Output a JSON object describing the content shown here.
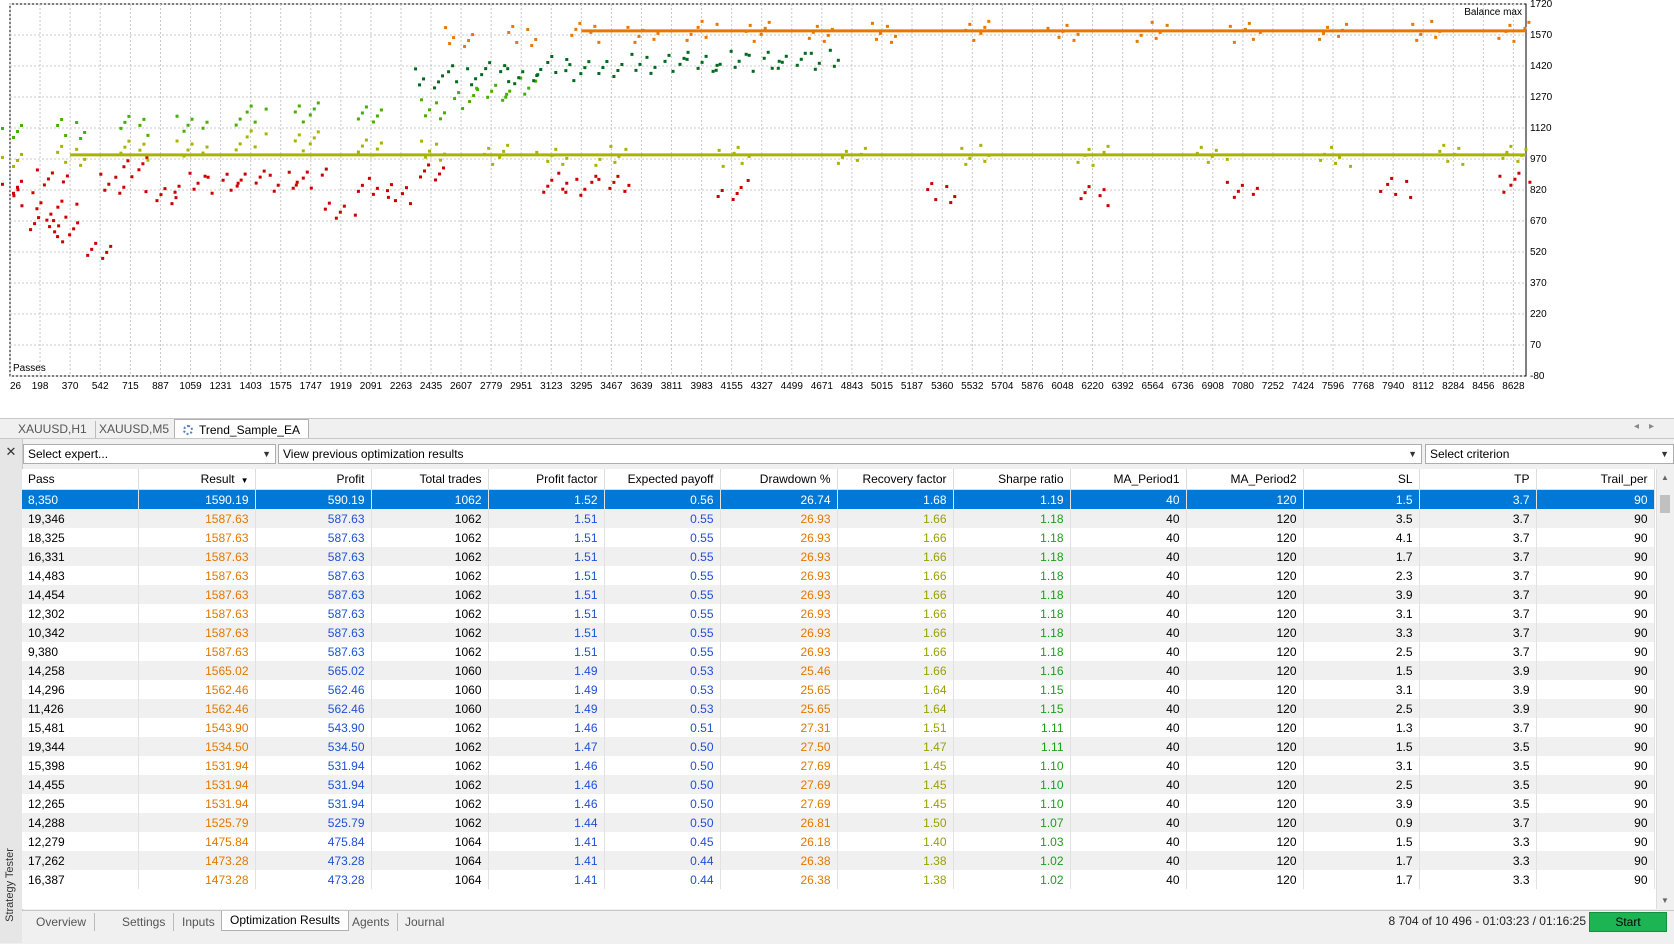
{
  "chart": {
    "balance_label": "Balance max",
    "passes_label": "Passes",
    "y_ticks": [
      "1720",
      "1570",
      "1420",
      "1270",
      "1120",
      "970",
      "820",
      "670",
      "520",
      "370",
      "220",
      "70",
      "-80"
    ],
    "x_ticks": [
      "26",
      "198",
      "370",
      "542",
      "715",
      "887",
      "1059",
      "1231",
      "1403",
      "1575",
      "1747",
      "1919",
      "2091",
      "2263",
      "2435",
      "2607",
      "2779",
      "2951",
      "3123",
      "3295",
      "3467",
      "3639",
      "3811",
      "3983",
      "4155",
      "4327",
      "4499",
      "4671",
      "4843",
      "5015",
      "5187",
      "5360",
      "5532",
      "5704",
      "5876",
      "6048",
      "6220",
      "6392",
      "6564",
      "6736",
      "6908",
      "7080",
      "7252",
      "7424",
      "7596",
      "7768",
      "7940",
      "8112",
      "8284",
      "8456",
      "8628"
    ],
    "colors": {
      "red": "#cc0000",
      "olive": "#a8b400",
      "lightgreen": "#44b000",
      "darkgreen": "#006b1c",
      "orange": "#e87800",
      "grid": "#c8c8c8"
    }
  },
  "chart_data": {
    "type": "scatter",
    "xlabel": "Passes",
    "ylabel": "Balance max",
    "xlim": [
      26,
      8700
    ],
    "ylim": [
      -80,
      1720
    ],
    "series": [
      {
        "color": "red",
        "x": [
          26,
          120,
          198,
          260,
          320,
          370,
          542,
          600,
          715,
          887,
          1059,
          1231,
          1403,
          1575,
          1747,
          1919,
          2091,
          2263,
          2435,
          3123,
          3295,
          3467,
          4155,
          5360,
          6220,
          7080,
          7940,
          8628
        ],
        "y": [
          850,
          780,
          650,
          900,
          720,
          620,
          540,
          860,
          930,
          800,
          860,
          860,
          880,
          860,
          880,
          720,
          840,
          800,
          900,
          860,
          850,
          840,
          820,
          810,
          800,
          840,
          830,
          860
        ]
      },
      {
        "color": "olive",
        "x": [
          26,
          370,
          715,
          1059,
          1403,
          1747,
          2091,
          2435,
          2779,
          3123,
          3467,
          4155,
          4843,
          5532,
          6220,
          6908,
          7596,
          8284,
          8628
        ],
        "y": [
          980,
          990,
          1020,
          1040,
          1060,
          1060,
          1040,
          1020,
          990,
          990,
          990,
          990,
          990,
          990,
          990,
          990,
          990,
          990,
          990
        ]
      },
      {
        "color": "lightgreen",
        "x": [
          26,
          370,
          715,
          1059,
          1403,
          1747,
          2091,
          2435,
          2607,
          2779,
          2951
        ],
        "y": [
          1120,
          1120,
          1140,
          1160,
          1180,
          1200,
          1200,
          1220,
          1260,
          1300,
          1320
        ]
      },
      {
        "color": "darkgreen",
        "x": [
          2435,
          2607,
          2779,
          2951,
          3123,
          3295,
          3467,
          3639,
          3811,
          3983,
          4155,
          4327,
          4499,
          4671
        ],
        "y": [
          1360,
          1380,
          1400,
          1390,
          1420,
          1400,
          1420,
          1440,
          1440,
          1440,
          1450,
          1450,
          1450,
          1450
        ]
      },
      {
        "color": "orange",
        "x": [
          2607,
          2951,
          3295,
          3639,
          3983,
          4327,
          4671,
          5015,
          5532,
          6048,
          6564,
          7080,
          7596,
          8112,
          8628
        ],
        "y": [
          1560,
          1570,
          1590,
          1590,
          1590,
          1590,
          1590,
          1590,
          1590,
          1590,
          1590,
          1590,
          1590,
          1590,
          1590
        ]
      }
    ]
  },
  "chart_tabs": {
    "t1": "XAUUSD,H1",
    "t2": "XAUUSD,M5",
    "t3": "Trend_Sample_EA"
  },
  "tester": {
    "side_label": "Strategy Tester",
    "expert_placeholder": "Select expert...",
    "view_prev": "View previous optimization results",
    "criterion": "Select criterion"
  },
  "columns": [
    "Pass",
    "Result",
    "Profit",
    "Total trades",
    "Profit factor",
    "Expected payoff",
    "Drawdown %",
    "Recovery factor",
    "Sharpe ratio",
    "MA_Period1",
    "MA_Period2",
    "SL",
    "TP",
    "Trail_per"
  ],
  "rows": [
    [
      "8,350",
      "1590.19",
      "590.19",
      "1062",
      "1.52",
      "0.56",
      "26.74",
      "1.68",
      "1.19",
      "40",
      "120",
      "1.5",
      "3.7",
      "90"
    ],
    [
      "19,346",
      "1587.63",
      "587.63",
      "1062",
      "1.51",
      "0.55",
      "26.93",
      "1.66",
      "1.18",
      "40",
      "120",
      "3.5",
      "3.7",
      "90"
    ],
    [
      "18,325",
      "1587.63",
      "587.63",
      "1062",
      "1.51",
      "0.55",
      "26.93",
      "1.66",
      "1.18",
      "40",
      "120",
      "4.1",
      "3.7",
      "90"
    ],
    [
      "16,331",
      "1587.63",
      "587.63",
      "1062",
      "1.51",
      "0.55",
      "26.93",
      "1.66",
      "1.18",
      "40",
      "120",
      "1.7",
      "3.7",
      "90"
    ],
    [
      "14,483",
      "1587.63",
      "587.63",
      "1062",
      "1.51",
      "0.55",
      "26.93",
      "1.66",
      "1.18",
      "40",
      "120",
      "2.3",
      "3.7",
      "90"
    ],
    [
      "14,454",
      "1587.63",
      "587.63",
      "1062",
      "1.51",
      "0.55",
      "26.93",
      "1.66",
      "1.18",
      "40",
      "120",
      "3.9",
      "3.7",
      "90"
    ],
    [
      "12,302",
      "1587.63",
      "587.63",
      "1062",
      "1.51",
      "0.55",
      "26.93",
      "1.66",
      "1.18",
      "40",
      "120",
      "3.1",
      "3.7",
      "90"
    ],
    [
      "10,342",
      "1587.63",
      "587.63",
      "1062",
      "1.51",
      "0.55",
      "26.93",
      "1.66",
      "1.18",
      "40",
      "120",
      "3.3",
      "3.7",
      "90"
    ],
    [
      "9,380",
      "1587.63",
      "587.63",
      "1062",
      "1.51",
      "0.55",
      "26.93",
      "1.66",
      "1.18",
      "40",
      "120",
      "2.5",
      "3.7",
      "90"
    ],
    [
      "14,258",
      "1565.02",
      "565.02",
      "1060",
      "1.49",
      "0.53",
      "25.46",
      "1.66",
      "1.16",
      "40",
      "120",
      "1.5",
      "3.9",
      "90"
    ],
    [
      "14,296",
      "1562.46",
      "562.46",
      "1060",
      "1.49",
      "0.53",
      "25.65",
      "1.64",
      "1.15",
      "40",
      "120",
      "3.1",
      "3.9",
      "90"
    ],
    [
      "11,426",
      "1562.46",
      "562.46",
      "1060",
      "1.49",
      "0.53",
      "25.65",
      "1.64",
      "1.15",
      "40",
      "120",
      "2.5",
      "3.9",
      "90"
    ],
    [
      "15,481",
      "1543.90",
      "543.90",
      "1062",
      "1.46",
      "0.51",
      "27.31",
      "1.51",
      "1.11",
      "40",
      "120",
      "1.3",
      "3.7",
      "90"
    ],
    [
      "19,344",
      "1534.50",
      "534.50",
      "1062",
      "1.47",
      "0.50",
      "27.50",
      "1.47",
      "1.11",
      "40",
      "120",
      "1.5",
      "3.5",
      "90"
    ],
    [
      "15,398",
      "1531.94",
      "531.94",
      "1062",
      "1.46",
      "0.50",
      "27.69",
      "1.45",
      "1.10",
      "40",
      "120",
      "3.1",
      "3.5",
      "90"
    ],
    [
      "14,455",
      "1531.94",
      "531.94",
      "1062",
      "1.46",
      "0.50",
      "27.69",
      "1.45",
      "1.10",
      "40",
      "120",
      "2.5",
      "3.5",
      "90"
    ],
    [
      "12,265",
      "1531.94",
      "531.94",
      "1062",
      "1.46",
      "0.50",
      "27.69",
      "1.45",
      "1.10",
      "40",
      "120",
      "3.9",
      "3.5",
      "90"
    ],
    [
      "14,288",
      "1525.79",
      "525.79",
      "1062",
      "1.44",
      "0.50",
      "26.81",
      "1.50",
      "1.07",
      "40",
      "120",
      "0.9",
      "3.7",
      "90"
    ],
    [
      "12,279",
      "1475.84",
      "475.84",
      "1064",
      "1.41",
      "0.45",
      "26.18",
      "1.40",
      "1.03",
      "40",
      "120",
      "1.5",
      "3.3",
      "90"
    ],
    [
      "17,262",
      "1473.28",
      "473.28",
      "1064",
      "1.41",
      "0.44",
      "26.38",
      "1.38",
      "1.02",
      "40",
      "120",
      "1.7",
      "3.3",
      "90"
    ],
    [
      "16,387",
      "1473.28",
      "473.28",
      "1064",
      "1.41",
      "0.44",
      "26.38",
      "1.38",
      "1.02",
      "40",
      "120",
      "1.7",
      "3.3",
      "90"
    ]
  ],
  "bottom_tabs": [
    "Overview",
    "Settings",
    "Inputs",
    "Optimization Results",
    "Agents",
    "Journal"
  ],
  "status": "8 704 of 10 496  -  01:03:23 / 01:16:25",
  "start_label": "Start"
}
